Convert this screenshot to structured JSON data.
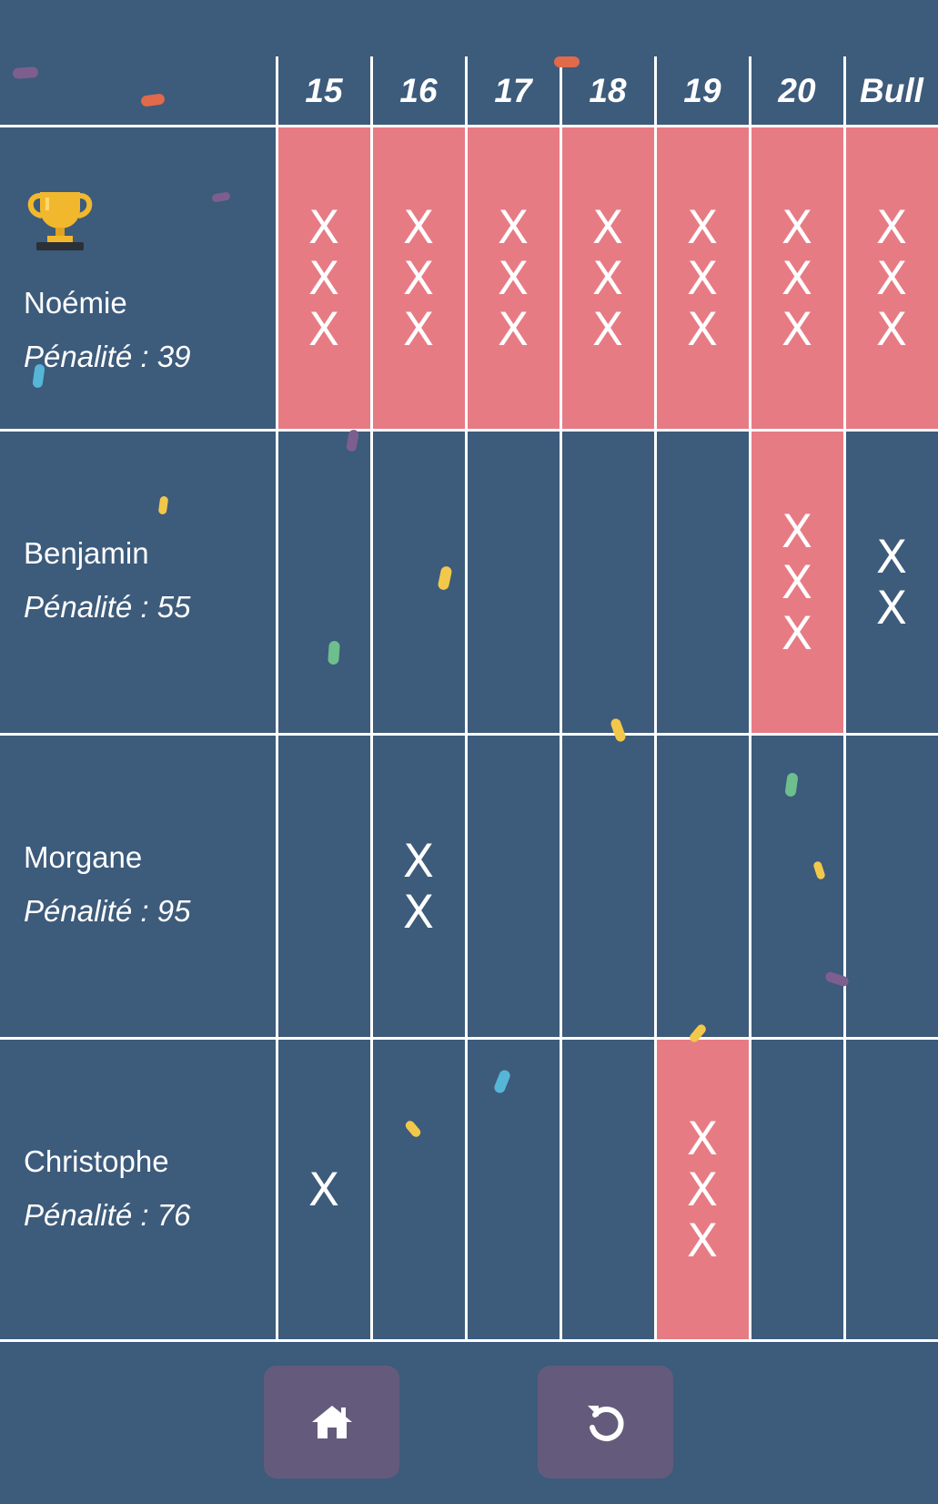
{
  "columns": [
    "15",
    "16",
    "17",
    "18",
    "19",
    "20",
    "Bull"
  ],
  "mark_symbol": "X",
  "penalty_label": "Pénalité : ",
  "players": [
    {
      "name": "Noémie",
      "penalty": "39",
      "winner": true,
      "marks": [
        3,
        3,
        3,
        3,
        3,
        3,
        3
      ]
    },
    {
      "name": "Benjamin",
      "penalty": "55",
      "winner": false,
      "marks": [
        0,
        0,
        0,
        0,
        0,
        3,
        2
      ]
    },
    {
      "name": "Morgane",
      "penalty": "95",
      "winner": false,
      "marks": [
        0,
        2,
        0,
        0,
        0,
        0,
        0
      ]
    },
    {
      "name": "Christophe",
      "penalty": "76",
      "winner": false,
      "marks": [
        1,
        0,
        0,
        0,
        3,
        0,
        0
      ]
    }
  ],
  "buttons": {
    "home_icon": "home-icon",
    "restart_icon": "restart-icon"
  },
  "colors": {
    "background": "#3d5b7b",
    "closed_cell": "#e77b84",
    "button": "#645b7c",
    "trophy": "#f2b82d"
  }
}
